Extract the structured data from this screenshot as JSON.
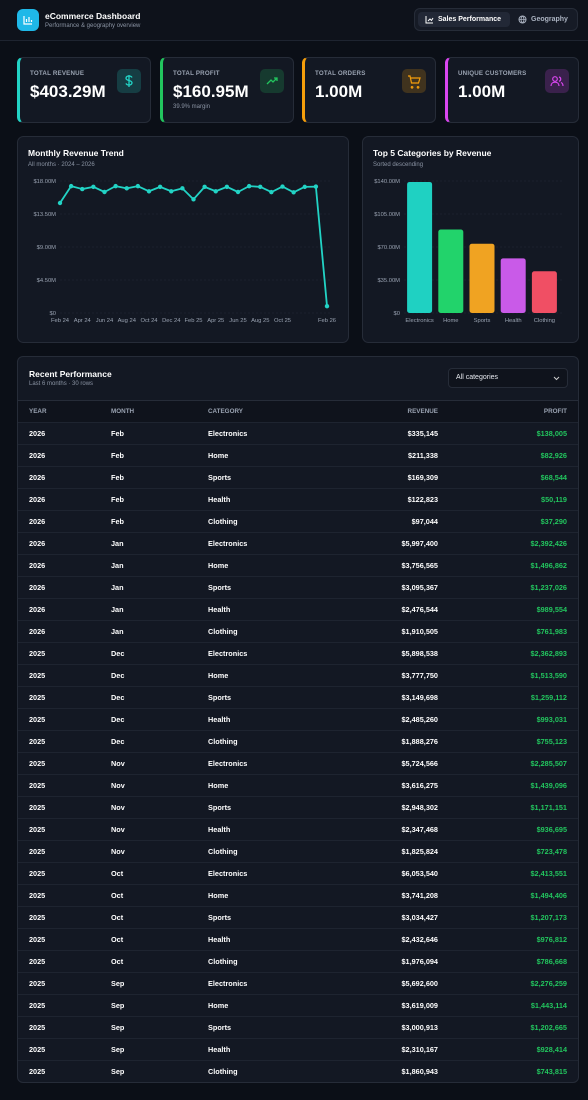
{
  "header": {
    "title": "eCommerce Dashboard",
    "subtitle": "Performance & geography overview",
    "tabs": [
      "Sales Performance",
      "Geography"
    ]
  },
  "kpis": [
    {
      "label": "TOTAL REVENUE",
      "value": "$403.29M",
      "color": "#22d3c5"
    },
    {
      "label": "TOTAL PROFIT",
      "value": "$160.95M",
      "note": "39.9% margin",
      "color": "#22c55e"
    },
    {
      "label": "TOTAL ORDERS",
      "value": "1.00M",
      "color": "#f59e0b"
    },
    {
      "label": "UNIQUE CUSTOMERS",
      "value": "1.00M",
      "color": "#d946ef"
    }
  ],
  "chart_data": [
    {
      "type": "line",
      "title": "Monthly Revenue Trend",
      "subtitle": "All months · 2024 – 2026",
      "categories": [
        "Feb 24",
        null,
        "Apr 24",
        null,
        "Jun 24",
        null,
        "Aug 24",
        null,
        "Oct 24",
        null,
        "Dec 24",
        null,
        "Feb 25",
        null,
        "Apr 25",
        null,
        "Jun 25",
        null,
        "Aug 25",
        null,
        "Oct 25",
        null,
        null,
        null,
        "Feb 26"
      ],
      "values": [
        15000000,
        17300000,
        16900000,
        17200000,
        16500000,
        17300000,
        17000000,
        17300000,
        16600000,
        17200000,
        16600000,
        17000000,
        15500000,
        17200000,
        16600000,
        17200000,
        16500000,
        17300000,
        17200000,
        16483632,
        17237915,
        16462435,
        17199522,
        17236381,
        935659
      ],
      "color": "#22d3c5",
      "ylim": [
        0,
        18000000
      ],
      "yticks": [
        {
          "value": 0,
          "label": "$0"
        },
        {
          "value": 4500000,
          "label": "$4.50M"
        },
        {
          "value": 9000000,
          "label": "$9.00M"
        },
        {
          "value": 13500000,
          "label": "$13.50M"
        },
        {
          "value": 18000000,
          "label": "$18.00M"
        }
      ],
      "grid": true
    },
    {
      "type": "bar",
      "title": "Top 5 Categories by Revenue",
      "subtitle": "Sorted descending",
      "categories": [
        "Electronics",
        "Home",
        "Sports",
        "Health",
        "Clothing"
      ],
      "values": [
        139000000,
        88500000,
        73500000,
        58000000,
        44300000
      ],
      "colors": [
        "#1fd1c2",
        "#22d36b",
        "#f0a322",
        "#c95ae8",
        "#f04f64"
      ],
      "ylim": [
        0,
        140000000
      ],
      "yticks": [
        {
          "value": 0,
          "label": "$0"
        },
        {
          "value": 35000000,
          "label": "$35.00M"
        },
        {
          "value": 70000000,
          "label": "$70.00M"
        },
        {
          "value": 105000000,
          "label": "$105.00M"
        },
        {
          "value": 140000000,
          "label": "$140.00M"
        }
      ],
      "grid": true
    }
  ],
  "table": {
    "title": "Recent Performance",
    "subtitle": "Last 6 months · 30 rows",
    "filter": "All categories",
    "columns": [
      "YEAR",
      "MONTH",
      "CATEGORY",
      "REVENUE",
      "PROFIT"
    ],
    "rows": [
      [
        "2026",
        "Feb",
        "Electronics",
        "$335,145",
        "$138,005"
      ],
      [
        "2026",
        "Feb",
        "Home",
        "$211,338",
        "$82,926"
      ],
      [
        "2026",
        "Feb",
        "Sports",
        "$169,309",
        "$68,544"
      ],
      [
        "2026",
        "Feb",
        "Health",
        "$122,823",
        "$50,119"
      ],
      [
        "2026",
        "Feb",
        "Clothing",
        "$97,044",
        "$37,290"
      ],
      [
        "2026",
        "Jan",
        "Electronics",
        "$5,997,400",
        "$2,392,426"
      ],
      [
        "2026",
        "Jan",
        "Home",
        "$3,756,565",
        "$1,496,862"
      ],
      [
        "2026",
        "Jan",
        "Sports",
        "$3,095,367",
        "$1,237,026"
      ],
      [
        "2026",
        "Jan",
        "Health",
        "$2,476,544",
        "$989,554"
      ],
      [
        "2026",
        "Jan",
        "Clothing",
        "$1,910,505",
        "$761,983"
      ],
      [
        "2025",
        "Dec",
        "Electronics",
        "$5,898,538",
        "$2,362,893"
      ],
      [
        "2025",
        "Dec",
        "Home",
        "$3,777,750",
        "$1,513,590"
      ],
      [
        "2025",
        "Dec",
        "Sports",
        "$3,149,698",
        "$1,259,112"
      ],
      [
        "2025",
        "Dec",
        "Health",
        "$2,485,260",
        "$993,031"
      ],
      [
        "2025",
        "Dec",
        "Clothing",
        "$1,888,276",
        "$755,123"
      ],
      [
        "2025",
        "Nov",
        "Electronics",
        "$5,724,566",
        "$2,285,507"
      ],
      [
        "2025",
        "Nov",
        "Home",
        "$3,616,275",
        "$1,439,096"
      ],
      [
        "2025",
        "Nov",
        "Sports",
        "$2,948,302",
        "$1,171,151"
      ],
      [
        "2025",
        "Nov",
        "Health",
        "$2,347,468",
        "$936,695"
      ],
      [
        "2025",
        "Nov",
        "Clothing",
        "$1,825,824",
        "$723,478"
      ],
      [
        "2025",
        "Oct",
        "Electronics",
        "$6,053,540",
        "$2,413,551"
      ],
      [
        "2025",
        "Oct",
        "Home",
        "$3,741,208",
        "$1,494,406"
      ],
      [
        "2025",
        "Oct",
        "Sports",
        "$3,034,427",
        "$1,207,173"
      ],
      [
        "2025",
        "Oct",
        "Health",
        "$2,432,646",
        "$976,812"
      ],
      [
        "2025",
        "Oct",
        "Clothing",
        "$1,976,094",
        "$786,668"
      ],
      [
        "2025",
        "Sep",
        "Electronics",
        "$5,692,600",
        "$2,276,259"
      ],
      [
        "2025",
        "Sep",
        "Home",
        "$3,619,009",
        "$1,443,114"
      ],
      [
        "2025",
        "Sep",
        "Sports",
        "$3,000,913",
        "$1,202,665"
      ],
      [
        "2025",
        "Sep",
        "Health",
        "$2,310,167",
        "$928,414"
      ],
      [
        "2025",
        "Sep",
        "Clothing",
        "$1,860,943",
        "$743,815"
      ]
    ]
  }
}
